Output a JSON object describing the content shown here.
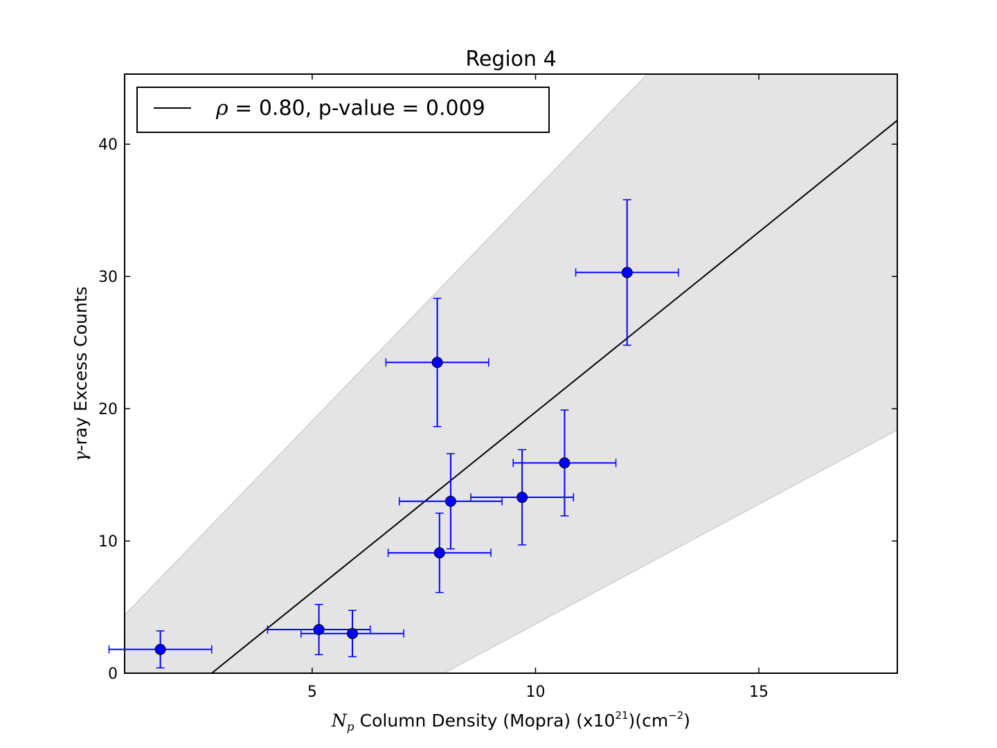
{
  "chart_data": {
    "type": "scatter",
    "title": "Region 4",
    "xlabel": {
      "symbol": "N",
      "subscript": "p",
      "text": " Column Density (Mopra) (x10",
      "exp": "21",
      "unit_open": ")(cm",
      "unit_exp": "−2",
      "close": ")"
    },
    "ylabel": {
      "symbol": "γ",
      "text": "-ray Excess Counts"
    },
    "xlim": [
      0.8,
      18.1
    ],
    "ylim": [
      0,
      45.3
    ],
    "xticks": [
      5,
      10,
      15
    ],
    "yticks": [
      0,
      10,
      20,
      30,
      40
    ],
    "grid": false,
    "legend_position": "top-left",
    "legend": {
      "symbol": "ρ",
      "text": " = 0.80, p-value = 0.009"
    },
    "fit_line": {
      "x": [
        2.75,
        18.1
      ],
      "y": [
        0,
        41.8
      ],
      "color": "#000000"
    },
    "confidence_band": {
      "upper": {
        "x": [
          0.8,
          12.5
        ],
        "y": [
          4.4,
          45.3
        ]
      },
      "lower": {
        "x": [
          7.95,
          18.1
        ],
        "y": [
          0,
          18.4
        ]
      },
      "color": "#e4e4e4"
    },
    "series": [
      {
        "color": "#0000ff",
        "points": [
          {
            "x": 1.6,
            "y": 1.8,
            "xerr": 1.15,
            "yerr": 1.4
          },
          {
            "x": 5.15,
            "y": 3.3,
            "xerr": 1.15,
            "yerr": 1.9
          },
          {
            "x": 5.9,
            "y": 3.0,
            "xerr": 1.15,
            "yerr": 1.75
          },
          {
            "x": 7.8,
            "y": 23.5,
            "xerr": 1.15,
            "yerr": 4.85
          },
          {
            "x": 7.85,
            "y": 9.1,
            "xerr": 1.15,
            "yerr": 3.0
          },
          {
            "x": 8.1,
            "y": 13.0,
            "xerr": 1.15,
            "yerr": 3.6
          },
          {
            "x": 9.7,
            "y": 13.3,
            "xerr": 1.15,
            "yerr": 3.6
          },
          {
            "x": 10.65,
            "y": 15.9,
            "xerr": 1.15,
            "yerr": 4.0
          },
          {
            "x": 12.05,
            "y": 30.3,
            "xerr": 1.15,
            "yerr": 5.5
          }
        ]
      }
    ]
  }
}
